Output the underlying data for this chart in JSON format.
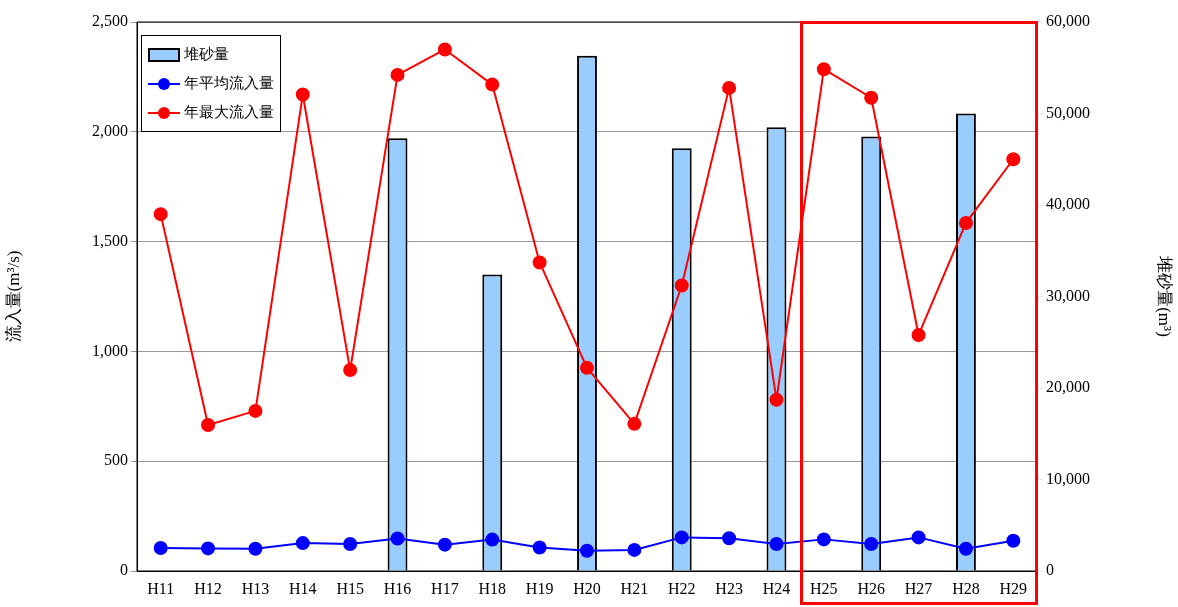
{
  "chart_data": {
    "type": "bar",
    "ylabel": "流入量(m³/s)",
    "y2label": "堆砂量(m³)",
    "categories": [
      "H11",
      "H12",
      "H13",
      "H14",
      "H15",
      "H16",
      "H17",
      "H18",
      "H19",
      "H20",
      "H21",
      "H22",
      "H23",
      "H24",
      "H25",
      "H26",
      "H27",
      "H28",
      "H29"
    ],
    "series": [
      {
        "name": "堆砂量",
        "axis": "y2",
        "color": "#99ccff",
        "values": [
          null,
          null,
          null,
          null,
          null,
          47300,
          null,
          32400,
          null,
          56300,
          null,
          46200,
          null,
          48500,
          null,
          47500,
          null,
          50000,
          null
        ]
      },
      {
        "name": "年平均流入量",
        "type": "line",
        "color": "#0000ff",
        "values": [
          105,
          103,
          101,
          127,
          123,
          148,
          120,
          143,
          107,
          92,
          96,
          153,
          149,
          123,
          144,
          123,
          153,
          101,
          138
        ]
      },
      {
        "name": "年最大流入量",
        "type": "line",
        "color": "#ff0000",
        "values": [
          1625,
          665,
          729,
          2170,
          915,
          2259,
          2375,
          2215,
          1405,
          925,
          670,
          1300,
          2200,
          780,
          2285,
          2155,
          1075,
          1585,
          1875
        ]
      }
    ],
    "ylim": [
      0,
      2500
    ],
    "yticks": [
      0,
      {
        "value": 500,
        "label": "500"
      },
      {
        "value": 1000,
        "label": "1,000"
      },
      {
        "value": 1500,
        "label": "1,500"
      },
      {
        "value": 2000,
        "label": "2,000"
      },
      {
        "value": 2500,
        "label": "2,500"
      }
    ],
    "y2lim": [
      0,
      60000
    ],
    "y2ticks": [
      0,
      {
        "value": 10000,
        "label": "10,000"
      },
      {
        "value": 20000,
        "label": "20,000"
      },
      {
        "value": 30000,
        "label": "30,000"
      },
      {
        "value": 40000,
        "label": "40,000"
      },
      {
        "value": 50000,
        "label": "50,000"
      },
      {
        "value": 60000,
        "label": "60,000"
      }
    ],
    "grid": "y",
    "legend": "top left",
    "marker": "circle",
    "line_style": "solid"
  }
}
